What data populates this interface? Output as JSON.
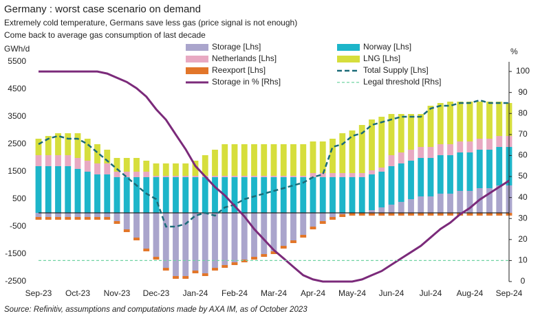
{
  "chart_data": {
    "type": "bar",
    "title": "Germany : worst case scenario on demand",
    "subtitle": [
      "Extremely cold temperature,  Germans save less gas (price signal is not enough)",
      "Come back to average gas consumption  of last decade"
    ],
    "y_label": "GWh/d",
    "y2_label": "%",
    "source": "Source: Refinitiv, assumptions and computations made by AXA IM, as of October 2023",
    "categories": [
      "Sep-23",
      null,
      null,
      null,
      "Oct-23",
      null,
      null,
      null,
      "Nov-23",
      null,
      null,
      null,
      "Dec-23",
      null,
      null,
      null,
      "Jan-24",
      null,
      null,
      null,
      "Feb-24",
      null,
      null,
      null,
      "Mar-24",
      null,
      null,
      null,
      "Apr-24",
      null,
      null,
      null,
      "May-24",
      null,
      null,
      null,
      "Jun-24",
      null,
      null,
      null,
      "Jul-24",
      null,
      null,
      null,
      "Aug-24",
      null,
      null,
      null,
      "Sep-24"
    ],
    "ylim": [
      -2500,
      5500
    ],
    "yticks": [
      -2500,
      -1500,
      -500,
      500,
      1500,
      2500,
      3500,
      4500,
      5500
    ],
    "y2lim": [
      0,
      104.6
    ],
    "y2ticks": [
      0,
      10,
      20,
      30,
      40,
      50,
      60,
      70,
      80,
      90,
      100
    ],
    "series": [
      {
        "name": "Storage [Lhs]",
        "type": "bar",
        "color": "#aaa5cc",
        "values": [
          -150,
          -150,
          -150,
          -150,
          -150,
          -150,
          -150,
          -150,
          -300,
          -600,
          -900,
          -1300,
          -1600,
          -2000,
          -2300,
          -2300,
          -2100,
          -2200,
          -2000,
          -1900,
          -1800,
          -1700,
          -1600,
          -1500,
          -1400,
          -1200,
          -1000,
          -800,
          -500,
          -300,
          -150,
          -50,
          0,
          0,
          100,
          200,
          300,
          400,
          500,
          600,
          600,
          700,
          700,
          800,
          800,
          900,
          900,
          1000,
          1000
        ]
      },
      {
        "name": "Norway [Lhs]",
        "type": "bar",
        "color": "#1db5c9",
        "values": [
          1700,
          1700,
          1700,
          1700,
          1600,
          1500,
          1400,
          1400,
          1300,
          1300,
          1300,
          1300,
          1300,
          1300,
          1300,
          1300,
          1300,
          1300,
          1300,
          1300,
          1300,
          1300,
          1300,
          1300,
          1300,
          1300,
          1300,
          1300,
          1300,
          1300,
          1300,
          1300,
          1300,
          1300,
          1300,
          1300,
          1400,
          1400,
          1400,
          1400,
          1400,
          1400,
          1400,
          1400,
          1400,
          1400,
          1400,
          1400,
          1400
        ]
      },
      {
        "name": "Netherlands [Lhs]",
        "type": "bar",
        "color": "#e8a9c2",
        "values": [
          400,
          400,
          400,
          400,
          400,
          400,
          400,
          400,
          200,
          200,
          200,
          200,
          50,
          50,
          50,
          50,
          50,
          50,
          50,
          50,
          50,
          50,
          50,
          50,
          50,
          50,
          50,
          50,
          150,
          150,
          150,
          150,
          150,
          150,
          150,
          150,
          400,
          400,
          400,
          400,
          400,
          400,
          400,
          400,
          400,
          400,
          400,
          400,
          400
        ]
      },
      {
        "name": "LNG [Lhs]",
        "type": "bar",
        "color": "#d6de3c",
        "values": [
          600,
          700,
          800,
          800,
          900,
          800,
          700,
          500,
          500,
          500,
          500,
          400,
          450,
          450,
          450,
          450,
          550,
          750,
          950,
          1150,
          1150,
          1150,
          1150,
          1150,
          1150,
          1150,
          1150,
          1150,
          1150,
          1150,
          1250,
          1450,
          1550,
          1750,
          1850,
          1850,
          1500,
          1400,
          1300,
          1200,
          1500,
          1500,
          1550,
          1450,
          1450,
          1350,
          1350,
          1250,
          1200
        ]
      },
      {
        "name": "Reexport [Lhs]",
        "type": "bar",
        "color": "#e2762a",
        "values": [
          -100,
          -100,
          -100,
          -100,
          -100,
          -100,
          -100,
          -100,
          -100,
          -100,
          -100,
          -100,
          -100,
          -100,
          -100,
          -100,
          -100,
          -100,
          -100,
          -100,
          -100,
          -100,
          -100,
          -100,
          -100,
          -100,
          -100,
          -100,
          -100,
          -100,
          -100,
          -100,
          -100,
          -100,
          -100,
          -100,
          -100,
          -100,
          -100,
          -100,
          -100,
          -100,
          -100,
          -100,
          -100,
          -100,
          -100,
          -100,
          -100
        ]
      },
      {
        "name": "Total Supply [Lhs]",
        "type": "line",
        "dashed": true,
        "color": "#1b6b78",
        "values": [
          2500,
          2700,
          2800,
          2700,
          2700,
          2500,
          2200,
          1900,
          1600,
          1300,
          1000,
          700,
          500,
          -500,
          -500,
          -400,
          -100,
          0,
          -100,
          200,
          300,
          500,
          600,
          700,
          800,
          900,
          1000,
          1100,
          1300,
          1400,
          2400,
          2500,
          2800,
          2900,
          3200,
          3300,
          3400,
          3500,
          3500,
          3500,
          3800,
          3900,
          3900,
          4000,
          4000,
          4100,
          4000,
          4000,
          4000
        ]
      },
      {
        "name": "Storage in % [Rhs]",
        "type": "line",
        "axis": "y2",
        "color": "#7b2a7a",
        "values": [
          100,
          100,
          100,
          100,
          100,
          100,
          100,
          99,
          97,
          95,
          92,
          88,
          82,
          77,
          70,
          63,
          55,
          50,
          45,
          41,
          36,
          31,
          25,
          20,
          15,
          11,
          7,
          3,
          1,
          0,
          0,
          0,
          0,
          1,
          3,
          5,
          8,
          11,
          14,
          17,
          21,
          25,
          28,
          32,
          35,
          39,
          42,
          45,
          48
        ]
      },
      {
        "name": "Legal threshold [Rhs]",
        "type": "line",
        "dashed": true,
        "axis": "y2",
        "color": "#6fd3a2",
        "values": [
          10,
          10,
          10,
          10,
          10,
          10,
          10,
          10,
          10,
          10,
          10,
          10,
          10,
          10,
          10,
          10,
          10,
          10,
          10,
          10,
          10,
          10,
          10,
          10,
          10,
          10,
          10,
          10,
          10,
          10,
          10,
          10,
          10,
          10,
          10,
          10,
          10,
          10,
          10,
          10,
          10,
          10,
          10,
          10,
          10,
          10,
          10,
          10,
          10
        ]
      }
    ]
  }
}
